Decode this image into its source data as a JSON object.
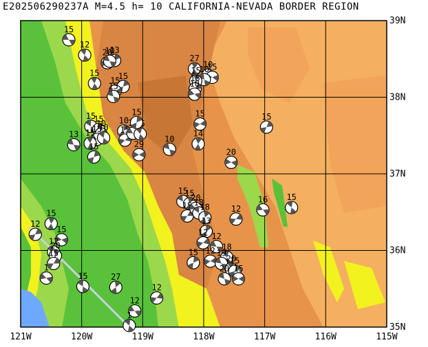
{
  "title": "E202506290237A M=4.5 h= 10 CALIFORNIA-NEVADA BORDER REGION",
  "lon_labels": [
    "121W",
    "120W",
    "119W",
    "118W",
    "117W",
    "116W",
    "115W"
  ],
  "lat_labels": [
    "35N",
    "36N",
    "37N",
    "38N",
    "39N"
  ],
  "colors": {
    "sea": "#6fa8ff",
    "lowland_green": "#59c23a",
    "plain_green": "#9cd84b",
    "yellow": "#f2f21e",
    "orange_light": "#f4b060",
    "orange": "#e7944a",
    "orange_dark": "#cf7d3e",
    "grid": "#000000"
  },
  "events": [
    {
      "lon": -120.21,
      "lat": 38.75,
      "depth": "15"
    },
    {
      "lon": -119.95,
      "lat": 38.55,
      "depth": "12"
    },
    {
      "lon": -119.46,
      "lat": 38.48,
      "depth": "13"
    },
    {
      "lon": -119.58,
      "lat": 38.45,
      "depth": "20"
    },
    {
      "lon": -119.54,
      "lat": 38.47,
      "depth": "10"
    },
    {
      "lon": -119.79,
      "lat": 38.18,
      "depth": "15"
    },
    {
      "lon": -119.32,
      "lat": 38.14,
      "depth": "15"
    },
    {
      "lon": -119.45,
      "lat": 38.08,
      "depth": "15"
    },
    {
      "lon": -119.48,
      "lat": 38.01,
      "depth": "15"
    },
    {
      "lon": -118.15,
      "lat": 38.37,
      "depth": "27"
    },
    {
      "lon": -117.93,
      "lat": 38.29,
      "depth": "10"
    },
    {
      "lon": -117.86,
      "lat": 38.26,
      "depth": "15"
    },
    {
      "lon": -117.99,
      "lat": 38.23,
      "depth": "10"
    },
    {
      "lon": -118.13,
      "lat": 38.21,
      "depth": "15"
    },
    {
      "lon": -118.14,
      "lat": 38.11,
      "depth": "15"
    },
    {
      "lon": -118.15,
      "lat": 38.04,
      "depth": "10"
    },
    {
      "lon": -119.85,
      "lat": 37.62,
      "depth": "15"
    },
    {
      "lon": -119.72,
      "lat": 37.58,
      "depth": "15"
    },
    {
      "lon": -119.68,
      "lat": 37.52,
      "depth": "10"
    },
    {
      "lon": -119.75,
      "lat": 37.45,
      "depth": "15"
    },
    {
      "lon": -119.64,
      "lat": 37.47,
      "depth": "10"
    },
    {
      "lon": -119.31,
      "lat": 37.56,
      "depth": "10"
    },
    {
      "lon": -119.29,
      "lat": 37.44,
      "depth": "15"
    },
    {
      "lon": -119.16,
      "lat": 37.53,
      "depth": "15"
    },
    {
      "lon": -119.04,
      "lat": 37.52,
      "depth": "15"
    },
    {
      "lon": -119.1,
      "lat": 37.67,
      "depth": "15"
    },
    {
      "lon": -118.06,
      "lat": 37.65,
      "depth": "15"
    },
    {
      "lon": -120.13,
      "lat": 37.38,
      "depth": "13"
    },
    {
      "lon": -119.86,
      "lat": 37.4,
      "depth": "15"
    },
    {
      "lon": -119.8,
      "lat": 37.22,
      "depth": "15"
    },
    {
      "lon": -119.06,
      "lat": 37.25,
      "depth": "29"
    },
    {
      "lon": -118.56,
      "lat": 37.32,
      "depth": "10"
    },
    {
      "lon": -118.09,
      "lat": 37.39,
      "depth": "14"
    },
    {
      "lon": -116.97,
      "lat": 37.61,
      "depth": "15"
    },
    {
      "lon": -117.55,
      "lat": 37.15,
      "depth": "20"
    },
    {
      "lon": -118.34,
      "lat": 36.64,
      "depth": "15"
    },
    {
      "lon": -118.23,
      "lat": 36.61,
      "depth": "15"
    },
    {
      "lon": -118.27,
      "lat": 36.45,
      "depth": "15"
    },
    {
      "lon": -118.13,
      "lat": 36.55,
      "depth": "20"
    },
    {
      "lon": -118.08,
      "lat": 36.49,
      "depth": "18"
    },
    {
      "lon": -117.98,
      "lat": 36.43,
      "depth": "18"
    },
    {
      "lon": -117.47,
      "lat": 36.41,
      "depth": "12"
    },
    {
      "lon": -117.03,
      "lat": 36.53,
      "depth": "16"
    },
    {
      "lon": -116.56,
      "lat": 36.56,
      "depth": "15"
    },
    {
      "lon": -117.96,
      "lat": 36.25,
      "depth": "13"
    },
    {
      "lon": -118.01,
      "lat": 36.1,
      "depth": "12"
    },
    {
      "lon": -117.79,
      "lat": 36.05,
      "depth": "12"
    },
    {
      "lon": -117.62,
      "lat": 35.91,
      "depth": "18"
    },
    {
      "lon": -118.17,
      "lat": 35.84,
      "depth": "15"
    },
    {
      "lon": -117.89,
      "lat": 35.86,
      "depth": "12"
    },
    {
      "lon": -117.71,
      "lat": 35.83,
      "depth": "19"
    },
    {
      "lon": -117.55,
      "lat": 35.76,
      "depth": "20"
    },
    {
      "lon": -117.49,
      "lat": 35.73,
      "depth": "15"
    },
    {
      "lon": -117.43,
      "lat": 35.63,
      "depth": "15"
    },
    {
      "lon": -117.66,
      "lat": 35.63,
      "depth": "20"
    },
    {
      "lon": -120.5,
      "lat": 36.35,
      "depth": "15"
    },
    {
      "lon": -120.76,
      "lat": 36.21,
      "depth": "12"
    },
    {
      "lon": -120.33,
      "lat": 36.14,
      "depth": "15"
    },
    {
      "lon": -120.46,
      "lat": 35.98,
      "depth": "12"
    },
    {
      "lon": -120.43,
      "lat": 35.93,
      "depth": "20"
    },
    {
      "lon": -120.46,
      "lat": 35.83,
      "depth": "15"
    },
    {
      "lon": -120.58,
      "lat": 35.64,
      "depth": "1"
    },
    {
      "lon": -119.98,
      "lat": 35.53,
      "depth": "15"
    },
    {
      "lon": -119.44,
      "lat": 35.52,
      "depth": "27"
    },
    {
      "lon": -118.77,
      "lat": 35.38,
      "depth": "12"
    },
    {
      "lon": -119.13,
      "lat": 35.21,
      "depth": "12"
    },
    {
      "lon": -119.22,
      "lat": 35.02,
      "depth": "1"
    }
  ]
}
